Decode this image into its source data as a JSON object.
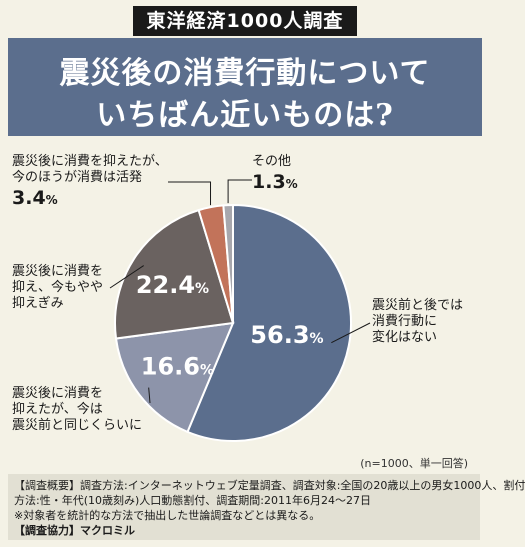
{
  "header": {
    "badge": "東洋経済1000人調査",
    "title_line1": "震災後の消費行動について",
    "title_line2": "いちばん近いものは?"
  },
  "chart_data": {
    "type": "pie",
    "slices": [
      {
        "label": "震災前と後では消費行動に変化はない",
        "label_lines": [
          "震災前と後では",
          "消費行動に",
          "変化はない"
        ],
        "value": 56.3,
        "color": "#5b6e8d"
      },
      {
        "label": "震災後に消費を抑えたが、今は震災前と同じくらいに",
        "label_lines": [
          "震災後に消費を",
          "抑えたが、今は",
          "震災前と同じくらいに"
        ],
        "value": 16.6,
        "color": "#8d94aa"
      },
      {
        "label": "震災後に消費を抑え、今もやや抑えぎみ",
        "label_lines": [
          "震災後に消費を",
          "抑え、今もやや",
          "抑えぎみ"
        ],
        "value": 22.4,
        "color": "#6a6260"
      },
      {
        "label": "震災後に消費を抑えたが、今のほうが消費は活発",
        "label_lines": [
          "震災後に消費を抑えたが、",
          "今のほうが消費は活発"
        ],
        "value": 3.4,
        "color": "#c2735a"
      },
      {
        "label": "その他",
        "label_lines": [
          "その他"
        ],
        "value": 1.3,
        "color": "#a7a7ad"
      }
    ],
    "unit": "%",
    "start_angle_deg": 0,
    "direction": "clockwise"
  },
  "note": "(n=1000、単一回答)",
  "footer": {
    "line1": "【調査概要】調査方法:インターネットウェブ定量調査、調査対象:全国の20歳以上の男女1000人、割付",
    "line2": "方法:性・年代(10歳刻み)人口動態割付、調査期間:2011年6月24～27日",
    "line3": "※対象者を統計的な方法で抽出した世論調査などとは異なる。",
    "line4": "【調査協力】マクロミル"
  }
}
